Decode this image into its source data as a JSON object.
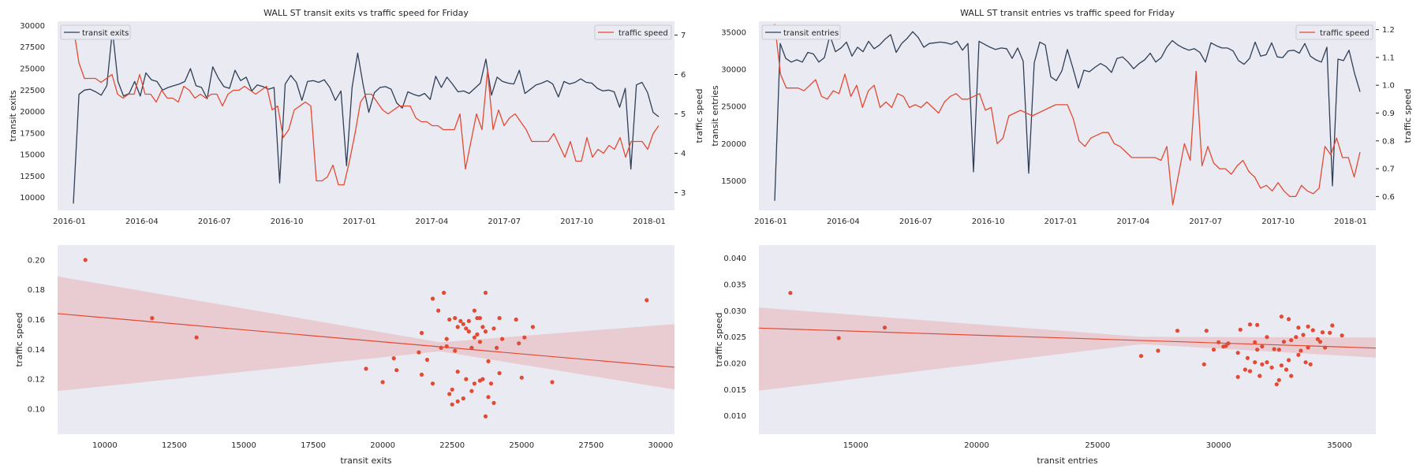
{
  "chart_data": [
    {
      "type": "line",
      "title": "WALL ST transit exits vs traffic speed for Friday",
      "ylabel": "transit exits",
      "y2label": "traffic speed",
      "x_ticks": [
        "2016-01",
        "2016-04",
        "2016-07",
        "2016-10",
        "2017-01",
        "2017-04",
        "2017-07",
        "2017-10",
        "2018-01"
      ],
      "y_ticks": [
        "10000",
        "12500",
        "15000",
        "17500",
        "20000",
        "22500",
        "25000",
        "27500",
        "30000"
      ],
      "y2_ticks": [
        "3",
        "4",
        "5",
        "6",
        "7"
      ],
      "ylim": [
        8500,
        30500
      ],
      "y2lim": [
        2.55,
        7.35
      ],
      "legend_left": "transit exits",
      "legend_right": "traffic speed",
      "colors": {
        "primary": "#2e3f56",
        "secondary": "#e24a33"
      },
      "series": [
        {
          "name": "transit exits",
          "axis": "left",
          "values": [
            9300,
            22000,
            22500,
            22600,
            22300,
            21900,
            23000,
            29500,
            23500,
            21800,
            22100,
            23500,
            21800,
            24500,
            23700,
            23500,
            22500,
            22800,
            23000,
            23200,
            23500,
            25000,
            23000,
            22800,
            21500,
            25200,
            23900,
            22900,
            22700,
            24800,
            23600,
            24000,
            22400,
            23100,
            22900,
            22600,
            22800,
            11700,
            23200,
            24200,
            23400,
            21300,
            23500,
            23600,
            23400,
            23700,
            22800,
            21300,
            22400,
            13700,
            22800,
            26800,
            23000,
            19900,
            22200,
            22800,
            22900,
            22600,
            21000,
            20400,
            22300,
            22000,
            21800,
            22100,
            21400,
            24100,
            22800,
            24000,
            23200,
            22300,
            22400,
            22100,
            22700,
            23300,
            26100,
            21900,
            24000,
            23500,
            23300,
            23200,
            24800,
            22100,
            22600,
            23100,
            23300,
            23600,
            23200,
            21700,
            23500,
            23200,
            23400,
            23800,
            23400,
            23300,
            22700,
            22400,
            22500,
            22300,
            20500,
            22700,
            13300,
            23100,
            23400,
            22200,
            19900,
            19400
          ]
        },
        {
          "name": "traffic speed",
          "axis": "right",
          "values": [
            7.2,
            6.3,
            5.9,
            5.9,
            5.9,
            5.8,
            5.9,
            6.0,
            5.5,
            5.4,
            5.5,
            5.5,
            6.0,
            5.5,
            5.5,
            5.3,
            5.6,
            5.4,
            5.4,
            5.3,
            5.7,
            5.6,
            5.4,
            5.5,
            5.4,
            5.5,
            5.5,
            5.2,
            5.5,
            5.6,
            5.6,
            5.7,
            5.6,
            5.5,
            5.6,
            5.7,
            5.1,
            5.2,
            4.4,
            4.6,
            5.1,
            5.2,
            5.3,
            5.2,
            3.3,
            3.3,
            3.4,
            3.7,
            3.2,
            3.2,
            3.8,
            4.5,
            5.3,
            5.5,
            5.5,
            5.3,
            5.1,
            5.0,
            5.1,
            5.2,
            5.2,
            5.2,
            4.9,
            4.8,
            4.8,
            4.7,
            4.7,
            4.6,
            4.6,
            4.6,
            5.0,
            3.6,
            4.3,
            5.0,
            4.6,
            6.1,
            4.6,
            5.1,
            4.7,
            4.9,
            5.0,
            4.8,
            4.6,
            4.3,
            4.3,
            4.3,
            4.3,
            4.5,
            4.2,
            3.9,
            4.3,
            3.8,
            3.8,
            4.4,
            3.9,
            4.1,
            4.0,
            4.2,
            4.1,
            4.4,
            3.9,
            4.3,
            4.3,
            4.3,
            4.1,
            4.5,
            4.7
          ]
        }
      ]
    },
    {
      "type": "line",
      "title": "WALL ST transit entries vs traffic speed for Friday",
      "ylabel": "transit entries",
      "y2label": "traffic speed",
      "x_ticks": [
        "2016-01",
        "2016-04",
        "2016-07",
        "2016-10",
        "2017-01",
        "2017-04",
        "2017-07",
        "2017-10",
        "2018-01"
      ],
      "y_ticks": [
        "15000",
        "20000",
        "25000",
        "30000",
        "35000"
      ],
      "y2_ticks": [
        "0.6",
        "0.7",
        "0.8",
        "0.9",
        "1.0",
        "1.1",
        "1.2"
      ],
      "ylim": [
        11000,
        36500
      ],
      "y2lim": [
        0.55,
        1.23
      ],
      "legend_left": "transit entries",
      "legend_right": "traffic speed",
      "colors": {
        "primary": "#2e3f56",
        "secondary": "#e24a33"
      },
      "series": [
        {
          "name": "transit entries",
          "axis": "left",
          "values": [
            12300,
            33500,
            31500,
            31000,
            31300,
            31000,
            32300,
            32100,
            31000,
            31600,
            34600,
            32400,
            32900,
            33700,
            31800,
            33000,
            32400,
            33800,
            32800,
            33300,
            34100,
            34700,
            32300,
            33500,
            34200,
            35100,
            34300,
            33000,
            33500,
            33600,
            33700,
            33600,
            33400,
            33800,
            32600,
            33500,
            16200,
            33800,
            33400,
            33000,
            32700,
            32900,
            32800,
            31500,
            32900,
            31100,
            16000,
            30900,
            33700,
            33300,
            29000,
            28500,
            29800,
            32700,
            30200,
            27500,
            29900,
            29700,
            30300,
            30800,
            30400,
            29600,
            31500,
            31700,
            31000,
            30100,
            30800,
            31300,
            32200,
            31000,
            31600,
            33000,
            33900,
            33300,
            32900,
            32600,
            32800,
            32300,
            31000,
            33600,
            33200,
            32900,
            32900,
            32500,
            31200,
            30700,
            31500,
            33700,
            31800,
            32000,
            33600,
            31700,
            31600,
            32500,
            32600,
            32200,
            33500,
            31800,
            31300,
            31000,
            33000,
            14300,
            31400,
            31200,
            32600,
            29500,
            27000
          ]
        },
        {
          "name": "traffic speed",
          "axis": "right",
          "values": [
            1.22,
            1.04,
            0.99,
            0.99,
            0.99,
            0.98,
            1.0,
            1.02,
            0.96,
            0.95,
            0.98,
            0.97,
            1.04,
            0.96,
            1.0,
            0.92,
            0.98,
            1.0,
            0.92,
            0.94,
            0.92,
            0.97,
            0.96,
            0.92,
            0.93,
            0.92,
            0.94,
            0.92,
            0.9,
            0.94,
            0.96,
            0.97,
            0.95,
            0.95,
            0.96,
            0.97,
            0.91,
            0.92,
            0.79,
            0.81,
            0.89,
            0.9,
            0.91,
            0.9,
            0.89,
            0.9,
            0.91,
            0.92,
            0.93,
            0.93,
            0.93,
            0.88,
            0.8,
            0.78,
            0.81,
            0.82,
            0.83,
            0.83,
            0.79,
            0.78,
            0.76,
            0.74,
            0.74,
            0.74,
            0.74,
            0.74,
            0.73,
            0.78,
            0.57,
            0.68,
            0.79,
            0.73,
            1.05,
            0.71,
            0.78,
            0.72,
            0.7,
            0.7,
            0.68,
            0.71,
            0.73,
            0.69,
            0.67,
            0.63,
            0.64,
            0.62,
            0.65,
            0.62,
            0.6,
            0.6,
            0.64,
            0.62,
            0.61,
            0.63,
            0.78,
            0.75,
            0.81,
            0.74,
            0.74,
            0.67,
            0.76
          ]
        }
      ]
    },
    {
      "type": "scatter",
      "title": "",
      "xlabel": "transit exits",
      "ylabel": "traffic speed",
      "x_ticks": [
        "10000",
        "12500",
        "15000",
        "17500",
        "20000",
        "22500",
        "25000",
        "27500",
        "30000"
      ],
      "y_ticks": [
        "0.10",
        "0.12",
        "0.14",
        "0.16",
        "0.18",
        "0.20"
      ],
      "xlim": [
        8300,
        30500
      ],
      "ylim": [
        0.083,
        0.21
      ],
      "regression": {
        "x0": 8300,
        "y0": 0.164,
        "x1": 30500,
        "y1": 0.128,
        "band_lo": [
          0.112,
          0.113
        ],
        "band_hi": [
          0.189,
          0.157
        ]
      },
      "colors": {
        "point": "#e24a33",
        "band": "#e8c9cd"
      },
      "points": [
        [
          9300,
          0.2
        ],
        [
          11700,
          0.161
        ],
        [
          13300,
          0.148
        ],
        [
          19400,
          0.127
        ],
        [
          20000,
          0.118
        ],
        [
          20400,
          0.134
        ],
        [
          20500,
          0.126
        ],
        [
          21300,
          0.138
        ],
        [
          21400,
          0.151
        ],
        [
          21400,
          0.123
        ],
        [
          21600,
          0.133
        ],
        [
          21800,
          0.117
        ],
        [
          21800,
          0.174
        ],
        [
          22000,
          0.166
        ],
        [
          22100,
          0.141
        ],
        [
          22200,
          0.178
        ],
        [
          22300,
          0.142
        ],
        [
          22300,
          0.147
        ],
        [
          22400,
          0.16
        ],
        [
          22400,
          0.11
        ],
        [
          22500,
          0.103
        ],
        [
          22500,
          0.113
        ],
        [
          22600,
          0.139
        ],
        [
          22600,
          0.161
        ],
        [
          22700,
          0.105
        ],
        [
          22700,
          0.155
        ],
        [
          22700,
          0.125
        ],
        [
          22800,
          0.159
        ],
        [
          22900,
          0.107
        ],
        [
          22900,
          0.157
        ],
        [
          23000,
          0.154
        ],
        [
          23000,
          0.12
        ],
        [
          23100,
          0.152
        ],
        [
          23100,
          0.159
        ],
        [
          23200,
          0.112
        ],
        [
          23200,
          0.141
        ],
        [
          23300,
          0.117
        ],
        [
          23300,
          0.166
        ],
        [
          23300,
          0.148
        ],
        [
          23400,
          0.161
        ],
        [
          23400,
          0.15
        ],
        [
          23500,
          0.161
        ],
        [
          23500,
          0.145
        ],
        [
          23500,
          0.119
        ],
        [
          23600,
          0.155
        ],
        [
          23600,
          0.12
        ],
        [
          23700,
          0.095
        ],
        [
          23700,
          0.178
        ],
        [
          23700,
          0.152
        ],
        [
          23800,
          0.108
        ],
        [
          23800,
          0.132
        ],
        [
          23900,
          0.117
        ],
        [
          24000,
          0.154
        ],
        [
          24000,
          0.104
        ],
        [
          24100,
          0.141
        ],
        [
          24200,
          0.161
        ],
        [
          24200,
          0.124
        ],
        [
          24300,
          0.147
        ],
        [
          24800,
          0.16
        ],
        [
          24900,
          0.144
        ],
        [
          25000,
          0.121
        ],
        [
          25100,
          0.148
        ],
        [
          25400,
          0.155
        ],
        [
          26100,
          0.118
        ],
        [
          29500,
          0.173
        ]
      ]
    },
    {
      "type": "scatter",
      "title": "",
      "xlabel": "transit entries",
      "ylabel": "traffic speed",
      "x_ticks": [
        "15000",
        "20000",
        "25000",
        "30000",
        "35000"
      ],
      "y_ticks": [
        "0.010",
        "0.015",
        "0.020",
        "0.025",
        "0.030",
        "0.035",
        "0.040"
      ],
      "xlim": [
        11000,
        36500
      ],
      "ylim": [
        0.0065,
        0.0425
      ],
      "regression": {
        "x0": 11000,
        "y0": 0.0267,
        "x1": 36500,
        "y1": 0.0229,
        "band_lo": [
          0.0148,
          0.0211
        ],
        "band_hi": [
          0.0306,
          0.0249
        ]
      },
      "colors": {
        "point": "#e24a33",
        "band": "#e8c9cd"
      },
      "points": [
        [
          12300,
          0.0334
        ],
        [
          14300,
          0.0248
        ],
        [
          16200,
          0.0268
        ],
        [
          26800,
          0.0214
        ],
        [
          27500,
          0.0224
        ],
        [
          28300,
          0.0262
        ],
        [
          29400,
          0.0198
        ],
        [
          29500,
          0.0262
        ],
        [
          29800,
          0.0226
        ],
        [
          30000,
          0.024
        ],
        [
          30200,
          0.0232
        ],
        [
          30300,
          0.0233
        ],
        [
          30400,
          0.0238
        ],
        [
          30800,
          0.022
        ],
        [
          30800,
          0.0174
        ],
        [
          30900,
          0.0264
        ],
        [
          31100,
          0.0188
        ],
        [
          31200,
          0.021
        ],
        [
          31300,
          0.0274
        ],
        [
          31300,
          0.0185
        ],
        [
          31500,
          0.024
        ],
        [
          31500,
          0.0202
        ],
        [
          31600,
          0.0273
        ],
        [
          31600,
          0.0226
        ],
        [
          31700,
          0.0176
        ],
        [
          31800,
          0.0198
        ],
        [
          31800,
          0.0232
        ],
        [
          32000,
          0.025
        ],
        [
          32000,
          0.0202
        ],
        [
          32200,
          0.0192
        ],
        [
          32300,
          0.0227
        ],
        [
          32400,
          0.016
        ],
        [
          32500,
          0.0168
        ],
        [
          32500,
          0.0226
        ],
        [
          32600,
          0.0289
        ],
        [
          32600,
          0.0196
        ],
        [
          32700,
          0.0241
        ],
        [
          32800,
          0.0188
        ],
        [
          32900,
          0.0206
        ],
        [
          32900,
          0.0284
        ],
        [
          33000,
          0.0244
        ],
        [
          33000,
          0.0176
        ],
        [
          33200,
          0.025
        ],
        [
          33300,
          0.0268
        ],
        [
          33300,
          0.0216
        ],
        [
          33400,
          0.0224
        ],
        [
          33500,
          0.0254
        ],
        [
          33600,
          0.0202
        ],
        [
          33700,
          0.023
        ],
        [
          33700,
          0.027
        ],
        [
          33800,
          0.0198
        ],
        [
          33900,
          0.0263
        ],
        [
          34100,
          0.0246
        ],
        [
          34200,
          0.0241
        ],
        [
          34300,
          0.0259
        ],
        [
          34400,
          0.023
        ],
        [
          34600,
          0.0258
        ],
        [
          34700,
          0.0272
        ],
        [
          35100,
          0.0253
        ]
      ]
    }
  ]
}
